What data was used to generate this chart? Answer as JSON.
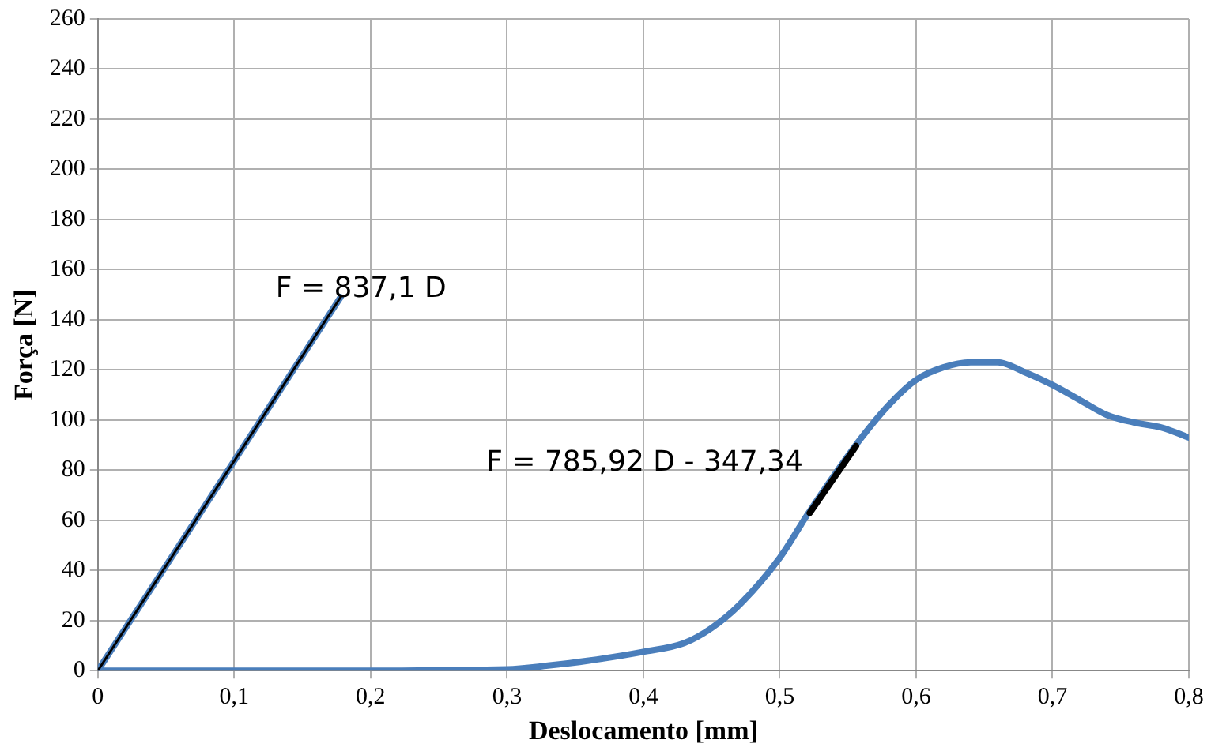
{
  "chart_data": {
    "type": "line",
    "xlabel": "Deslocamento [mm]",
    "ylabel": "Força [N]",
    "xlim": [
      0,
      0.8
    ],
    "xticks": [
      0,
      {
        "value": 0.1,
        "label": "0,1"
      },
      {
        "value": 0.2,
        "label": "0,2"
      },
      {
        "value": 0.3,
        "label": "0,3"
      },
      {
        "value": 0.4,
        "label": "0,4"
      },
      {
        "value": 0.5,
        "label": "0,5"
      },
      {
        "value": 0.6,
        "label": "0,6"
      },
      {
        "value": 0.7,
        "label": "0,7"
      },
      {
        "value": 0.8,
        "label": "0,8"
      }
    ],
    "ylim": [
      0,
      260
    ],
    "yticks": [
      0,
      20,
      40,
      60,
      80,
      100,
      120,
      140,
      160,
      180,
      200,
      220,
      240,
      260
    ],
    "grid": true,
    "legend": false,
    "marker": "none",
    "line_style": "solid",
    "series": [
      {
        "color": "#4a7ebb",
        "x": [
          0,
          0.1,
          0.2,
          0.3,
          0.33,
          0.36,
          0.4,
          0.43,
          0.45,
          0.47,
          0.5,
          0.52,
          0.54,
          0.56,
          0.58,
          0.6,
          0.62,
          0.64,
          0.66,
          0.68,
          0.7,
          0.72,
          0.74,
          0.76,
          0.78,
          0.8
        ],
        "values": [
          0,
          0,
          0,
          0.5,
          2,
          4,
          7.5,
          11,
          17,
          26,
          45,
          62,
          78,
          93,
          106,
          116,
          121,
          123,
          123,
          119,
          114,
          108,
          102,
          99,
          97,
          93
        ]
      },
      {
        "color": "#4a7ebb",
        "x": [
          0,
          0.178
        ],
        "values": [
          0,
          149
        ]
      },
      {
        "color": "#000000",
        "x": [
          0,
          0.178
        ],
        "values": [
          0,
          149
        ]
      },
      {
        "color": "#000000",
        "x": [
          0.522,
          0.556
        ],
        "values": [
          62.9,
          89.6
        ]
      }
    ],
    "annotations": [
      "F = 837,1 D",
      "F = 785,92 D - 347,34"
    ]
  }
}
